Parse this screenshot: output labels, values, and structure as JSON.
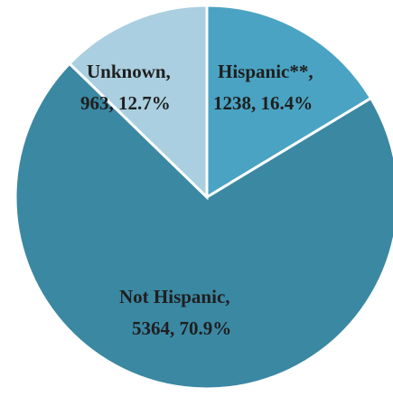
{
  "chart_data": {
    "type": "pie",
    "slices": [
      {
        "label": "Hispanic**",
        "value": 1238,
        "percent": "16.4%",
        "value_text": "1238",
        "color": "#4aa3c2"
      },
      {
        "label": "Not Hispanic",
        "value": 5364,
        "percent": "70.9%",
        "value_text": "5364",
        "color": "#3b88a3"
      },
      {
        "label": "Unknown",
        "value": 963,
        "percent": "12.7%",
        "value_text": "963",
        "color": "#a9cfe0"
      }
    ],
    "labels": {
      "hispanic": {
        "line1": "Hispanic**,",
        "line2": "1238, 16.4%"
      },
      "not_hispanic": {
        "line1": "Not Hispanic,",
        "line2": "5364, 70.9%"
      },
      "unknown": {
        "line1": "Unknown,",
        "line2": "963, 12.7%"
      }
    }
  }
}
